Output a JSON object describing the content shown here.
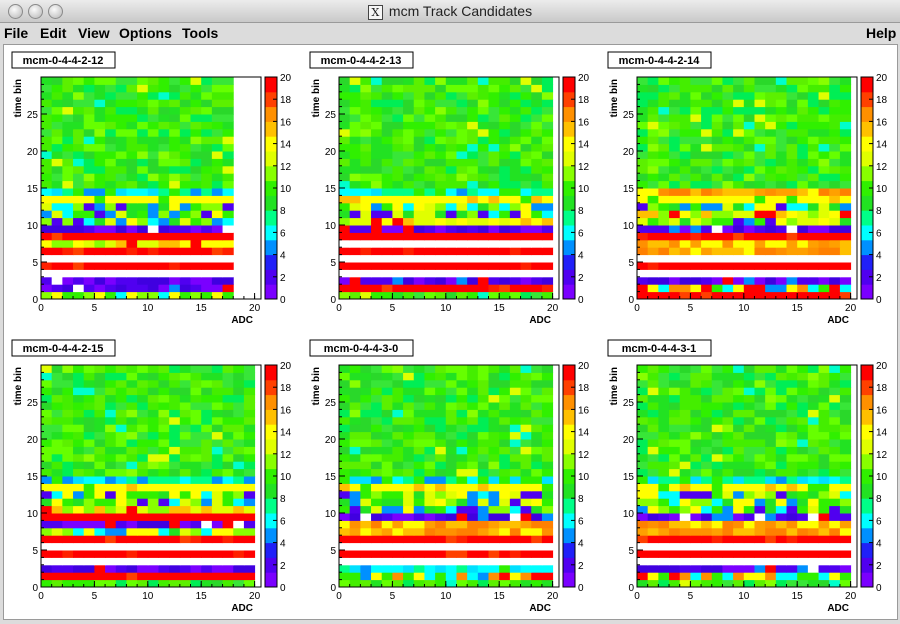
{
  "window": {
    "title": "mcm Track Candidates",
    "app_icon": "x11-icon"
  },
  "menubar": {
    "file": "File",
    "edit": "Edit",
    "view": "View",
    "options": "Options",
    "tools": "Tools",
    "help": "Help"
  },
  "colors": {
    "palette": [
      "#7a00ff",
      "#5000f0",
      "#2020f8",
      "#0090ff",
      "#00ffff",
      "#00ff88",
      "#22e222",
      "#30f000",
      "#88ff00",
      "#e0ff00",
      "#ffff00",
      "#ffc000",
      "#ff9000",
      "#ff4000",
      "#ff0000"
    ],
    "empty": "#ffffff"
  },
  "chart_data": [
    {
      "type": "heatmap",
      "title": "mcm-0-4-4-2-12",
      "xlabel": "ADC",
      "ylabel": "time bin",
      "xlim": [
        0,
        20
      ],
      "ylim": [
        0,
        30
      ],
      "zlim": [
        0,
        20
      ],
      "x_ticks": [
        0,
        5,
        10,
        15,
        20
      ],
      "y_ticks": [
        0,
        5,
        10,
        15,
        20,
        25
      ],
      "z_ticks": [
        0,
        2,
        4,
        6,
        8,
        10,
        12,
        14,
        16,
        18,
        20
      ],
      "grid": false,
      "legend": "right",
      "rows": [
        {
          "t": 0,
          "pattern": "low_mixed"
        },
        {
          "t": 1,
          "pattern": "blue_band"
        },
        {
          "t": 2,
          "pattern": "blue_band"
        },
        {
          "t": 3,
          "pattern": "white_gap"
        },
        {
          "t": 4,
          "pattern": "red_band"
        },
        {
          "t": 5,
          "pattern": "white_gap"
        },
        {
          "t": 6,
          "pattern": "red_band"
        },
        {
          "t": 7,
          "pattern": "yellow_mix"
        },
        {
          "t": 8,
          "pattern": "red_band"
        },
        {
          "t": 9,
          "pattern": "blue_band"
        },
        {
          "t": 10,
          "pattern": "mid_mixed"
        },
        {
          "t": 11,
          "pattern": "mid_mixed"
        },
        {
          "t": 12,
          "pattern": "mid_mixed"
        },
        {
          "t": 13,
          "pattern": "yellow_band"
        },
        {
          "t": 14,
          "pattern": "cyan_band"
        },
        {
          "t": 15,
          "pattern": "green_noise"
        }
      ],
      "empty_right_columns": 2
    },
    {
      "type": "heatmap",
      "title": "mcm-0-4-4-2-13",
      "xlabel": "ADC",
      "ylabel": "time bin",
      "xlim": [
        0,
        20
      ],
      "ylim": [
        0,
        30
      ],
      "zlim": [
        0,
        20
      ],
      "x_ticks": [
        0,
        5,
        10,
        15,
        20
      ],
      "y_ticks": [
        0,
        5,
        10,
        15,
        20,
        25
      ],
      "z_ticks": [
        0,
        2,
        4,
        6,
        8,
        10,
        12,
        14,
        16,
        18,
        20
      ],
      "grid": false,
      "legend": "right",
      "rows": [
        {
          "t": 0,
          "pattern": "green_noise"
        },
        {
          "t": 1,
          "pattern": "red_band"
        },
        {
          "t": 2,
          "pattern": "blue_band"
        },
        {
          "t": 3,
          "pattern": "white_gap"
        },
        {
          "t": 4,
          "pattern": "red_band"
        },
        {
          "t": 5,
          "pattern": "white_gap"
        },
        {
          "t": 6,
          "pattern": "red_band"
        },
        {
          "t": 7,
          "pattern": "white_gap"
        },
        {
          "t": 8,
          "pattern": "red_band"
        },
        {
          "t": 9,
          "pattern": "blue_band"
        },
        {
          "t": 10,
          "pattern": "yellow_mix"
        },
        {
          "t": 11,
          "pattern": "mid_mixed"
        },
        {
          "t": 12,
          "pattern": "mid_mixed"
        },
        {
          "t": 13,
          "pattern": "yellow_band"
        },
        {
          "t": 14,
          "pattern": "cyan_band"
        },
        {
          "t": 15,
          "pattern": "green_noise"
        }
      ],
      "empty_right_columns": 0
    },
    {
      "type": "heatmap",
      "title": "mcm-0-4-4-2-14",
      "xlabel": "ADC",
      "ylabel": "time bin",
      "xlim": [
        0,
        20
      ],
      "ylim": [
        0,
        30
      ],
      "zlim": [
        0,
        20
      ],
      "x_ticks": [
        0,
        5,
        10,
        15,
        20
      ],
      "y_ticks": [
        0,
        5,
        10,
        15,
        20,
        25
      ],
      "z_ticks": [
        0,
        2,
        4,
        6,
        8,
        10,
        12,
        14,
        16,
        18,
        20
      ],
      "grid": false,
      "legend": "right",
      "rows": [
        {
          "t": 0,
          "pattern": "red_band"
        },
        {
          "t": 1,
          "pattern": "red_mix"
        },
        {
          "t": 2,
          "pattern": "blue_band"
        },
        {
          "t": 3,
          "pattern": "white_gap"
        },
        {
          "t": 4,
          "pattern": "red_band"
        },
        {
          "t": 5,
          "pattern": "white_gap"
        },
        {
          "t": 6,
          "pattern": "orange_band"
        },
        {
          "t": 7,
          "pattern": "orange_band"
        },
        {
          "t": 8,
          "pattern": "red_band"
        },
        {
          "t": 9,
          "pattern": "blue_band"
        },
        {
          "t": 10,
          "pattern": "mid_mixed"
        },
        {
          "t": 11,
          "pattern": "yellow_mix"
        },
        {
          "t": 12,
          "pattern": "mid_mixed"
        },
        {
          "t": 13,
          "pattern": "yellow_band"
        },
        {
          "t": 14,
          "pattern": "orange_band"
        },
        {
          "t": 15,
          "pattern": "green_noise"
        }
      ],
      "empty_right_columns": 0
    },
    {
      "type": "heatmap",
      "title": "mcm-0-4-4-2-15",
      "xlabel": "ADC",
      "ylabel": "time bin",
      "xlim": [
        0,
        20
      ],
      "ylim": [
        0,
        30
      ],
      "zlim": [
        0,
        20
      ],
      "x_ticks": [
        0,
        5,
        10,
        15,
        20
      ],
      "y_ticks": [
        0,
        5,
        10,
        15,
        20,
        25
      ],
      "z_ticks": [
        0,
        2,
        4,
        6,
        8,
        10,
        12,
        14,
        16,
        18,
        20
      ],
      "grid": false,
      "legend": "right",
      "rows": [
        {
          "t": 0,
          "pattern": "green_noise"
        },
        {
          "t": 1,
          "pattern": "red_band"
        },
        {
          "t": 2,
          "pattern": "blue_band"
        },
        {
          "t": 3,
          "pattern": "white_gap"
        },
        {
          "t": 4,
          "pattern": "red_band"
        },
        {
          "t": 5,
          "pattern": "white_gap"
        },
        {
          "t": 6,
          "pattern": "red_band"
        },
        {
          "t": 7,
          "pattern": "mid_mixed"
        },
        {
          "t": 8,
          "pattern": "blue_band"
        },
        {
          "t": 9,
          "pattern": "red_band"
        },
        {
          "t": 10,
          "pattern": "yellow_mix"
        },
        {
          "t": 11,
          "pattern": "mid_mixed"
        },
        {
          "t": 12,
          "pattern": "mid_mixed"
        },
        {
          "t": 13,
          "pattern": "yellow_band"
        },
        {
          "t": 14,
          "pattern": "cyan_band"
        },
        {
          "t": 15,
          "pattern": "green_noise"
        }
      ],
      "empty_right_columns": 0
    },
    {
      "type": "heatmap",
      "title": "mcm-0-4-4-3-0",
      "xlabel": "ADC",
      "ylabel": "time bin",
      "xlim": [
        0,
        20
      ],
      "ylim": [
        0,
        30
      ],
      "zlim": [
        0,
        20
      ],
      "x_ticks": [
        0,
        5,
        10,
        15,
        20
      ],
      "y_ticks": [
        0,
        5,
        10,
        15,
        20,
        25
      ],
      "z_ticks": [
        0,
        2,
        4,
        6,
        8,
        10,
        12,
        14,
        16,
        18,
        20
      ],
      "grid": false,
      "legend": "right",
      "rows": [
        {
          "t": 0,
          "pattern": "green_noise"
        },
        {
          "t": 1,
          "pattern": "red_mix"
        },
        {
          "t": 2,
          "pattern": "cyan_band"
        },
        {
          "t": 3,
          "pattern": "white_gap"
        },
        {
          "t": 4,
          "pattern": "red_band"
        },
        {
          "t": 5,
          "pattern": "white_gap"
        },
        {
          "t": 6,
          "pattern": "red_band"
        },
        {
          "t": 7,
          "pattern": "orange_band"
        },
        {
          "t": 8,
          "pattern": "orange_band"
        },
        {
          "t": 9,
          "pattern": "blue_band"
        },
        {
          "t": 10,
          "pattern": "mid_mixed"
        },
        {
          "t": 11,
          "pattern": "mid_mixed"
        },
        {
          "t": 12,
          "pattern": "mid_mixed"
        },
        {
          "t": 13,
          "pattern": "yellow_band"
        },
        {
          "t": 14,
          "pattern": "cyan_band"
        },
        {
          "t": 15,
          "pattern": "green_noise"
        }
      ],
      "empty_right_columns": 0
    },
    {
      "type": "heatmap",
      "title": "mcm-0-4-4-3-1",
      "xlabel": "ADC",
      "ylabel": "time bin",
      "xlim": [
        0,
        20
      ],
      "ylim": [
        0,
        30
      ],
      "zlim": [
        0,
        20
      ],
      "x_ticks": [
        0,
        5,
        10,
        15,
        20
      ],
      "y_ticks": [
        0,
        5,
        10,
        15,
        20,
        25
      ],
      "z_ticks": [
        0,
        2,
        4,
        6,
        8,
        10,
        12,
        14,
        16,
        18,
        20
      ],
      "grid": false,
      "legend": "right",
      "rows": [
        {
          "t": 0,
          "pattern": "green_noise"
        },
        {
          "t": 1,
          "pattern": "red_mix"
        },
        {
          "t": 2,
          "pattern": "blue_band"
        },
        {
          "t": 3,
          "pattern": "white_gap"
        },
        {
          "t": 4,
          "pattern": "red_band"
        },
        {
          "t": 5,
          "pattern": "white_gap"
        },
        {
          "t": 6,
          "pattern": "red_band"
        },
        {
          "t": 7,
          "pattern": "orange_band"
        },
        {
          "t": 8,
          "pattern": "orange_band"
        },
        {
          "t": 9,
          "pattern": "blue_band"
        },
        {
          "t": 10,
          "pattern": "mid_mixed"
        },
        {
          "t": 11,
          "pattern": "mid_mixed"
        },
        {
          "t": 12,
          "pattern": "mid_mixed"
        },
        {
          "t": 13,
          "pattern": "yellow_band"
        },
        {
          "t": 14,
          "pattern": "cyan_band"
        },
        {
          "t": 15,
          "pattern": "green_noise"
        }
      ],
      "empty_right_columns": 0
    }
  ]
}
